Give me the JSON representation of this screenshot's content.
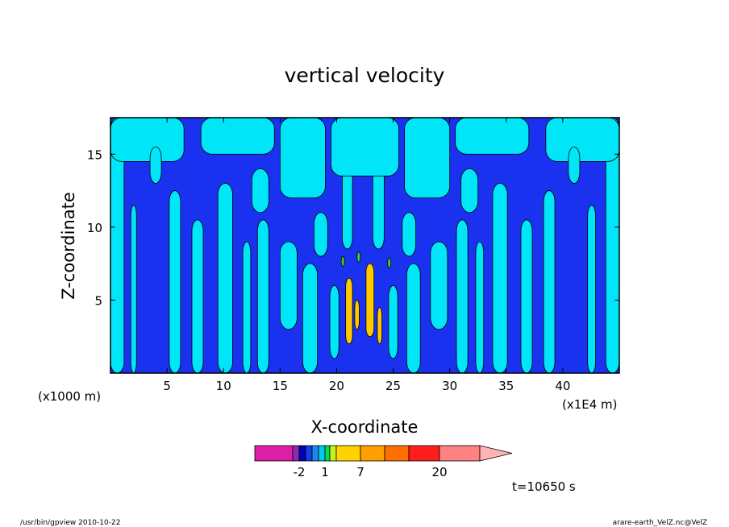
{
  "chart_data": {
    "type": "heatmap",
    "title": "vertical velocity",
    "xlabel": "X-coordinate",
    "ylabel": "Z-coordinate",
    "x_unit_left": "(x1000 m)",
    "x_unit_right": "(x1E4 m)",
    "xlim": [
      0,
      45
    ],
    "ylim": [
      0,
      17.5
    ],
    "x_ticks": [
      5,
      10,
      15,
      20,
      25,
      30,
      35,
      40
    ],
    "y_ticks": [
      5,
      10,
      15
    ],
    "time_label": "t=10650 s",
    "colorbar": {
      "labels": [
        {
          "text": "-2",
          "value": -2
        },
        {
          "text": "1",
          "value": 1
        },
        {
          "text": "7",
          "value": 7
        },
        {
          "text": "20",
          "value": 20
        }
      ],
      "colors": [
        "#dd1ea6",
        "#8a2bb2",
        "#0000b4",
        "#1440e6",
        "#1a88f0",
        "#00c8f0",
        "#00e048",
        "#c8f01e",
        "#ffd200",
        "#ffa000",
        "#ff6e00",
        "#ff1e1e",
        "#ff8282",
        "#ffb4b4"
      ]
    },
    "field_colors": {
      "background_level": "#1a32f0",
      "positive_level": "#00e6f8",
      "weak_updraft": "#3cc83c",
      "strong_updraft": "#ffc800"
    }
  },
  "footer": {
    "left": "/usr/bin/gpview  2010-10-22",
    "right": "arare-earth_VelZ.nc@VelZ"
  }
}
